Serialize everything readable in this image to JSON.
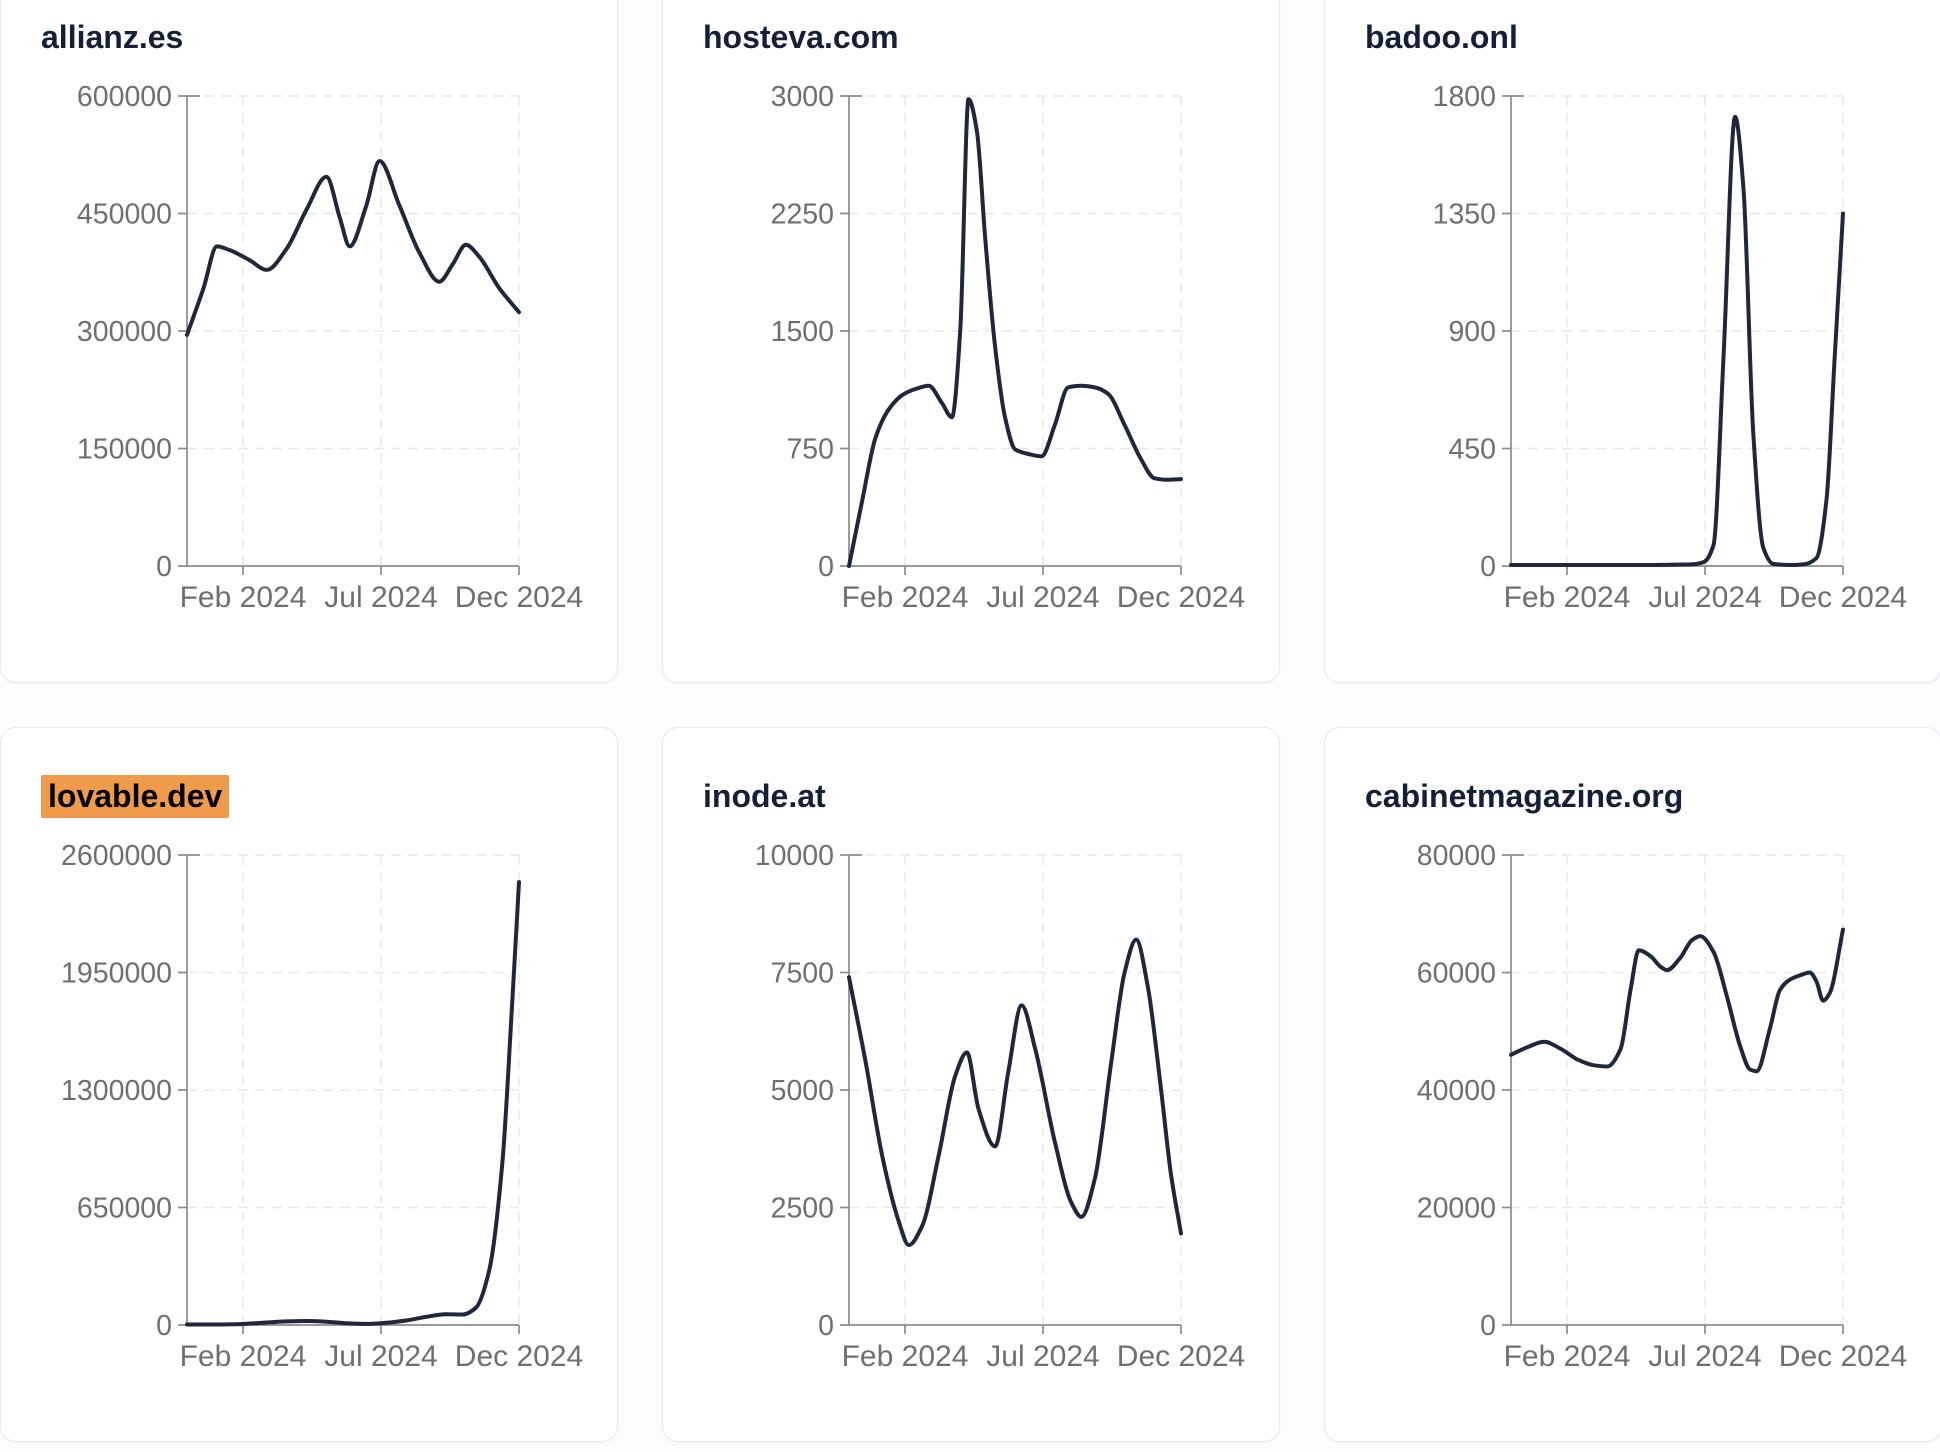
{
  "style": {
    "line_color": "#20263c",
    "title_color": "#151f38",
    "highlight_color": "#f09b4c",
    "axis_color": "#8b8b8b",
    "grid_color": "#e7e7e7",
    "card_border_color": "#e3e8f1"
  },
  "chart_data": [
    {
      "type": "line",
      "title": "allianz.es",
      "title_highlighted": false,
      "x_domain": [
        "Dec 2023",
        "Dec 2024"
      ],
      "x_tick_labels": [
        "Feb 2024",
        "Jul 2024",
        "Dec 2024"
      ],
      "y_ticks": [
        0,
        150000,
        300000,
        450000,
        600000
      ],
      "y_max": 600000,
      "grid": true,
      "legend": "none",
      "points": [
        {
          "t": 0.0,
          "v": 295000
        },
        {
          "t": 0.05,
          "v": 355000
        },
        {
          "t": 0.09,
          "v": 408000
        },
        {
          "t": 0.13,
          "v": 403000
        },
        {
          "t": 0.19,
          "v": 390000
        },
        {
          "t": 0.24,
          "v": 378000
        },
        {
          "t": 0.3,
          "v": 405000
        },
        {
          "t": 0.36,
          "v": 455000
        },
        {
          "t": 0.42,
          "v": 497000
        },
        {
          "t": 0.46,
          "v": 445000
        },
        {
          "t": 0.49,
          "v": 408000
        },
        {
          "t": 0.54,
          "v": 460000
        },
        {
          "t": 0.58,
          "v": 517000
        },
        {
          "t": 0.64,
          "v": 460000
        },
        {
          "t": 0.7,
          "v": 400000
        },
        {
          "t": 0.76,
          "v": 363000
        },
        {
          "t": 0.8,
          "v": 385000
        },
        {
          "t": 0.84,
          "v": 410000
        },
        {
          "t": 0.88,
          "v": 395000
        },
        {
          "t": 0.94,
          "v": 355000
        },
        {
          "t": 1.0,
          "v": 324000
        }
      ]
    },
    {
      "type": "line",
      "title": "hosteva.com",
      "title_highlighted": false,
      "x_domain": [
        "Dec 2023",
        "Dec 2024"
      ],
      "x_tick_labels": [
        "Feb 2024",
        "Jul 2024",
        "Dec 2024"
      ],
      "y_ticks": [
        0,
        750,
        1500,
        2250,
        3000
      ],
      "y_max": 3000,
      "grid": true,
      "legend": "none",
      "points": [
        {
          "t": 0.0,
          "v": 0
        },
        {
          "t": 0.04,
          "v": 420
        },
        {
          "t": 0.08,
          "v": 820
        },
        {
          "t": 0.12,
          "v": 1000
        },
        {
          "t": 0.16,
          "v": 1090
        },
        {
          "t": 0.2,
          "v": 1130
        },
        {
          "t": 0.24,
          "v": 1150
        },
        {
          "t": 0.28,
          "v": 1040
        },
        {
          "t": 0.31,
          "v": 950
        },
        {
          "t": 0.335,
          "v": 1500
        },
        {
          "t": 0.36,
          "v": 2980
        },
        {
          "t": 0.385,
          "v": 2780
        },
        {
          "t": 0.41,
          "v": 2100
        },
        {
          "t": 0.44,
          "v": 1400
        },
        {
          "t": 0.47,
          "v": 950
        },
        {
          "t": 0.5,
          "v": 745
        },
        {
          "t": 0.54,
          "v": 715
        },
        {
          "t": 0.58,
          "v": 700
        },
        {
          "t": 0.62,
          "v": 900
        },
        {
          "t": 0.66,
          "v": 1140
        },
        {
          "t": 0.7,
          "v": 1150
        },
        {
          "t": 0.74,
          "v": 1140
        },
        {
          "t": 0.78,
          "v": 1100
        },
        {
          "t": 0.83,
          "v": 900
        },
        {
          "t": 0.88,
          "v": 680
        },
        {
          "t": 0.92,
          "v": 560
        },
        {
          "t": 0.96,
          "v": 550
        },
        {
          "t": 1.0,
          "v": 555
        }
      ]
    },
    {
      "type": "line",
      "title": "badoo.onl",
      "title_highlighted": false,
      "x_domain": [
        "Dec 2023",
        "Dec 2024"
      ],
      "x_tick_labels": [
        "Feb 2024",
        "Jul 2024",
        "Dec 2024"
      ],
      "y_ticks": [
        0,
        450,
        900,
        1350,
        1800
      ],
      "y_max": 1800,
      "grid": true,
      "legend": "none",
      "points": [
        {
          "t": 0.0,
          "v": 4
        },
        {
          "t": 0.08,
          "v": 4
        },
        {
          "t": 0.16,
          "v": 4
        },
        {
          "t": 0.24,
          "v": 4
        },
        {
          "t": 0.32,
          "v": 4
        },
        {
          "t": 0.4,
          "v": 4
        },
        {
          "t": 0.48,
          "v": 5
        },
        {
          "t": 0.54,
          "v": 6
        },
        {
          "t": 0.58,
          "v": 15
        },
        {
          "t": 0.61,
          "v": 80
        },
        {
          "t": 0.64,
          "v": 800
        },
        {
          "t": 0.675,
          "v": 1720
        },
        {
          "t": 0.7,
          "v": 1450
        },
        {
          "t": 0.73,
          "v": 500
        },
        {
          "t": 0.76,
          "v": 70
        },
        {
          "t": 0.79,
          "v": 8
        },
        {
          "t": 0.84,
          "v": 4
        },
        {
          "t": 0.88,
          "v": 6
        },
        {
          "t": 0.92,
          "v": 30
        },
        {
          "t": 0.95,
          "v": 250
        },
        {
          "t": 0.975,
          "v": 800
        },
        {
          "t": 1.0,
          "v": 1350
        }
      ]
    },
    {
      "type": "line",
      "title": "lovable.dev",
      "title_highlighted": true,
      "x_domain": [
        "Dec 2023",
        "Dec 2024"
      ],
      "x_tick_labels": [
        "Feb 2024",
        "Jul 2024",
        "Dec 2024"
      ],
      "y_ticks": [
        0,
        650000,
        1300000,
        1950000,
        2600000
      ],
      "y_max": 2600000,
      "grid": true,
      "legend": "none",
      "points": [
        {
          "t": 0.0,
          "v": 3000
        },
        {
          "t": 0.08,
          "v": 3000
        },
        {
          "t": 0.16,
          "v": 5000
        },
        {
          "t": 0.24,
          "v": 14000
        },
        {
          "t": 0.3,
          "v": 20000
        },
        {
          "t": 0.36,
          "v": 22000
        },
        {
          "t": 0.42,
          "v": 18000
        },
        {
          "t": 0.48,
          "v": 10000
        },
        {
          "t": 0.54,
          "v": 6000
        },
        {
          "t": 0.6,
          "v": 12000
        },
        {
          "t": 0.66,
          "v": 25000
        },
        {
          "t": 0.72,
          "v": 45000
        },
        {
          "t": 0.78,
          "v": 60000
        },
        {
          "t": 0.83,
          "v": 58000
        },
        {
          "t": 0.87,
          "v": 95000
        },
        {
          "t": 0.91,
          "v": 300000
        },
        {
          "t": 0.95,
          "v": 900000
        },
        {
          "t": 0.98,
          "v": 1800000
        },
        {
          "t": 1.0,
          "v": 2450000
        }
      ]
    },
    {
      "type": "line",
      "title": "inode.at",
      "title_highlighted": false,
      "x_domain": [
        "Dec 2023",
        "Dec 2024"
      ],
      "x_tick_labels": [
        "Feb 2024",
        "Jul 2024",
        "Dec 2024"
      ],
      "y_ticks": [
        0,
        2500,
        5000,
        7500,
        10000
      ],
      "y_max": 10000,
      "grid": true,
      "legend": "none",
      "points": [
        {
          "t": 0.0,
          "v": 7400
        },
        {
          "t": 0.05,
          "v": 5600
        },
        {
          "t": 0.1,
          "v": 3600
        },
        {
          "t": 0.15,
          "v": 2200
        },
        {
          "t": 0.18,
          "v": 1700
        },
        {
          "t": 0.22,
          "v": 2100
        },
        {
          "t": 0.27,
          "v": 3600
        },
        {
          "t": 0.32,
          "v": 5300
        },
        {
          "t": 0.355,
          "v": 5800
        },
        {
          "t": 0.39,
          "v": 4600
        },
        {
          "t": 0.44,
          "v": 3800
        },
        {
          "t": 0.48,
          "v": 5400
        },
        {
          "t": 0.52,
          "v": 6800
        },
        {
          "t": 0.56,
          "v": 5900
        },
        {
          "t": 0.62,
          "v": 3900
        },
        {
          "t": 0.67,
          "v": 2600
        },
        {
          "t": 0.7,
          "v": 2300
        },
        {
          "t": 0.74,
          "v": 3100
        },
        {
          "t": 0.79,
          "v": 5600
        },
        {
          "t": 0.83,
          "v": 7500
        },
        {
          "t": 0.865,
          "v": 8200
        },
        {
          "t": 0.9,
          "v": 7200
        },
        {
          "t": 0.94,
          "v": 5000
        },
        {
          "t": 0.97,
          "v": 3200
        },
        {
          "t": 1.0,
          "v": 1950
        }
      ]
    },
    {
      "type": "line",
      "title": "cabinetmagazine.org",
      "title_highlighted": false,
      "x_domain": [
        "Dec 2023",
        "Dec 2024"
      ],
      "x_tick_labels": [
        "Feb 2024",
        "Jul 2024",
        "Dec 2024"
      ],
      "y_ticks": [
        0,
        20000,
        40000,
        60000,
        80000
      ],
      "y_max": 80000,
      "grid": true,
      "legend": "none",
      "points": [
        {
          "t": 0.0,
          "v": 46000
        },
        {
          "t": 0.05,
          "v": 47300
        },
        {
          "t": 0.1,
          "v": 48200
        },
        {
          "t": 0.15,
          "v": 47000
        },
        {
          "t": 0.2,
          "v": 45200
        },
        {
          "t": 0.25,
          "v": 44200
        },
        {
          "t": 0.29,
          "v": 44000
        },
        {
          "t": 0.33,
          "v": 47000
        },
        {
          "t": 0.36,
          "v": 57000
        },
        {
          "t": 0.385,
          "v": 63800
        },
        {
          "t": 0.42,
          "v": 62800
        },
        {
          "t": 0.45,
          "v": 61000
        },
        {
          "t": 0.47,
          "v": 60400
        },
        {
          "t": 0.51,
          "v": 62500
        },
        {
          "t": 0.545,
          "v": 65500
        },
        {
          "t": 0.57,
          "v": 66200
        },
        {
          "t": 0.61,
          "v": 63500
        },
        {
          "t": 0.65,
          "v": 56000
        },
        {
          "t": 0.69,
          "v": 47500
        },
        {
          "t": 0.72,
          "v": 43500
        },
        {
          "t": 0.74,
          "v": 43200
        },
        {
          "t": 0.78,
          "v": 50500
        },
        {
          "t": 0.81,
          "v": 57000
        },
        {
          "t": 0.84,
          "v": 58800
        },
        {
          "t": 0.87,
          "v": 59500
        },
        {
          "t": 0.9,
          "v": 60000
        },
        {
          "t": 0.92,
          "v": 58500
        },
        {
          "t": 0.94,
          "v": 55200
        },
        {
          "t": 0.96,
          "v": 56500
        },
        {
          "t": 1.0,
          "v": 67300
        }
      ]
    }
  ]
}
